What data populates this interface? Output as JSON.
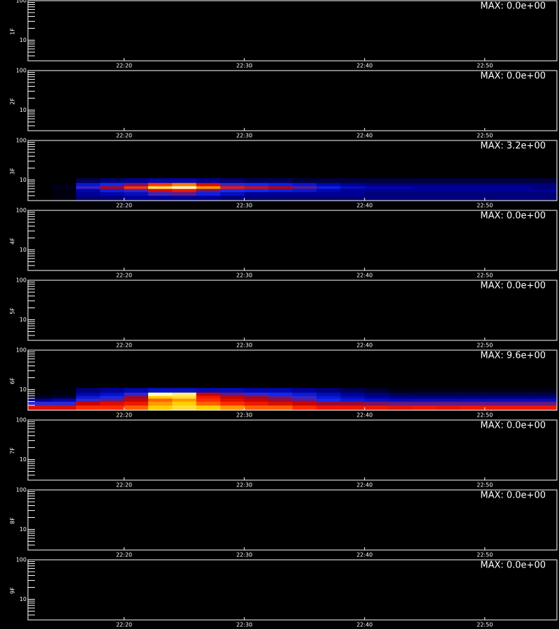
{
  "chart_data": [
    {
      "type": "heatmap",
      "ylabel": "1F",
      "annotation": "MAX: 0.0e+00",
      "xlim": [
        12,
        56
      ],
      "xticks": [
        {
          "value": 20,
          "label": "22:20"
        },
        {
          "value": 30,
          "label": "22:30"
        },
        {
          "value": 40,
          "label": "22:40"
        },
        {
          "value": 50,
          "label": "22:50"
        }
      ],
      "ylim": [
        3,
        100
      ],
      "yticks": [
        10,
        100
      ],
      "yminorticks": [
        4,
        5,
        6,
        7,
        8,
        9,
        20,
        30,
        40,
        50,
        60,
        70,
        80,
        90
      ],
      "log_y": true
    },
    {
      "type": "heatmap",
      "ylabel": "2F",
      "annotation": "MAX: 0.0e+00",
      "xlim": [
        12,
        56
      ],
      "xticks": [
        {
          "value": 20,
          "label": "22:20"
        },
        {
          "value": 30,
          "label": "22:30"
        },
        {
          "value": 40,
          "label": "22:40"
        },
        {
          "value": 50,
          "label": "22:50"
        }
      ],
      "ylim": [
        3,
        100
      ],
      "yticks": [
        10,
        100
      ],
      "yminorticks": [
        4,
        5,
        6,
        7,
        8,
        9,
        20,
        30,
        40,
        50,
        60,
        70,
        80,
        90
      ],
      "log_y": true
    },
    {
      "type": "heatmap",
      "ylabel": "3F",
      "annotation": "MAX: 3.2e+00",
      "xlim": [
        12,
        56
      ],
      "xticks": [
        {
          "value": 20,
          "label": "22:20"
        },
        {
          "value": 30,
          "label": "22:30"
        },
        {
          "value": 40,
          "label": "22:40"
        },
        {
          "value": 50,
          "label": "22:50"
        }
      ],
      "ylim": [
        3,
        100
      ],
      "yticks": [
        10,
        100
      ],
      "yminorticks": [
        4,
        5,
        6,
        7,
        8,
        9,
        20,
        30,
        40,
        50,
        60,
        70,
        80,
        90
      ],
      "log_y": true,
      "colorscale": [
        "#000000",
        "#0000a0",
        "#1030ff",
        "#c00000",
        "#ff2000",
        "#ffd000",
        "#ffffc0"
      ],
      "xbins": [
        12,
        14,
        16,
        18,
        20,
        22,
        24,
        26,
        28,
        30,
        32,
        34,
        36,
        38,
        40,
        42,
        44,
        46,
        48,
        50,
        52,
        54,
        56
      ],
      "ybins": [
        3,
        4,
        5,
        6,
        7,
        8.5,
        11
      ],
      "z": [
        [
          0,
          0.05,
          0.4,
          0.4,
          0.5,
          0.5,
          0.5,
          0.5,
          0.4,
          0.4,
          0.4,
          0.4,
          0.4,
          0.4,
          0.4,
          0.4,
          0.4,
          0.4,
          0.4,
          0.4,
          0.4,
          0.4
        ],
        [
          0,
          0.05,
          0.5,
          0.6,
          0.7,
          1.2,
          1.3,
          0.9,
          0.7,
          0.5,
          0.5,
          0.5,
          0.5,
          0.5,
          0.4,
          0.4,
          0.4,
          0.4,
          0.4,
          0.4,
          0.4,
          0.4
        ],
        [
          0,
          0.05,
          0.6,
          0.9,
          1.2,
          1.8,
          2.0,
          1.4,
          1.1,
          1.0,
          0.9,
          0.8,
          0.6,
          0.5,
          0.5,
          0.5,
          0.5,
          0.5,
          0.5,
          0.5,
          0.5,
          0.5
        ],
        [
          0,
          0.1,
          1.2,
          1.6,
          2.2,
          2.9,
          3.2,
          2.5,
          2.0,
          1.8,
          1.6,
          1.3,
          0.9,
          0.7,
          0.6,
          0.6,
          0.5,
          0.5,
          0.5,
          0.5,
          0.5,
          0.4
        ],
        [
          0,
          0.05,
          0.8,
          1.0,
          1.4,
          2.2,
          2.4,
          1.8,
          1.2,
          1.0,
          0.9,
          0.8,
          0.6,
          0.5,
          0.4,
          0.4,
          0.4,
          0.4,
          0.4,
          0.4,
          0.4,
          0.4
        ],
        [
          0,
          0,
          0.3,
          0.4,
          0.5,
          0.6,
          0.6,
          0.5,
          0.4,
          0.3,
          0.3,
          0.2,
          0.2,
          0.2,
          0.2,
          0.2,
          0.2,
          0.2,
          0.2,
          0.2,
          0.2,
          0.2
        ]
      ]
    },
    {
      "type": "heatmap",
      "ylabel": "4F",
      "annotation": "MAX: 0.0e+00",
      "xlim": [
        12,
        56
      ],
      "xticks": [
        {
          "value": 20,
          "label": "22:20"
        },
        {
          "value": 30,
          "label": "22:30"
        },
        {
          "value": 40,
          "label": "22:40"
        },
        {
          "value": 50,
          "label": "22:50"
        }
      ],
      "ylim": [
        3,
        100
      ],
      "yticks": [
        10,
        100
      ],
      "yminorticks": [
        4,
        5,
        6,
        7,
        8,
        9,
        20,
        30,
        40,
        50,
        60,
        70,
        80,
        90
      ],
      "log_y": true
    },
    {
      "type": "heatmap",
      "ylabel": "5F",
      "annotation": "MAX: 0.0e+00",
      "xlim": [
        12,
        56
      ],
      "xticks": [
        {
          "value": 20,
          "label": "22:20"
        },
        {
          "value": 30,
          "label": "22:30"
        },
        {
          "value": 40,
          "label": "22:40"
        },
        {
          "value": 50,
          "label": "22:50"
        }
      ],
      "ylim": [
        3,
        100
      ],
      "yticks": [
        10,
        100
      ],
      "yminorticks": [
        4,
        5,
        6,
        7,
        8,
        9,
        20,
        30,
        40,
        50,
        60,
        70,
        80,
        90
      ],
      "log_y": true
    },
    {
      "type": "heatmap",
      "ylabel": "6F",
      "annotation": "MAX: 9.6e+00",
      "xlim": [
        12,
        56
      ],
      "xticks": [
        {
          "value": 20,
          "label": "22:20"
        },
        {
          "value": 30,
          "label": "22:30"
        },
        {
          "value": 40,
          "label": "22:40"
        },
        {
          "value": 50,
          "label": "22:50"
        }
      ],
      "ylim": [
        3,
        100
      ],
      "yticks": [
        10,
        100
      ],
      "yminorticks": [
        4,
        5,
        6,
        7,
        8,
        9,
        20,
        30,
        40,
        50,
        60,
        70,
        80,
        90
      ],
      "log_y": true,
      "colorscale": [
        "#000000",
        "#0000a0",
        "#1030ff",
        "#c00000",
        "#ff2000",
        "#ffd000",
        "#ffffc0"
      ],
      "xbins": [
        12,
        14,
        16,
        18,
        20,
        22,
        24,
        26,
        28,
        30,
        32,
        34,
        36,
        38,
        40,
        42,
        44,
        46,
        48,
        50,
        52,
        54,
        56
      ],
      "ybins": [
        3,
        4,
        5,
        6,
        7,
        8.5,
        11
      ],
      "z": [
        [
          5.5,
          5.5,
          6.5,
          6.5,
          7,
          8,
          8.5,
          8,
          7.5,
          7,
          7,
          6.5,
          6,
          6,
          6,
          5.8,
          6,
          5.8,
          6,
          6,
          6,
          6
        ],
        [
          3.5,
          3.5,
          5,
          5.5,
          6,
          7.5,
          8,
          7,
          6.5,
          6,
          5.5,
          5,
          4.5,
          4.5,
          4.2,
          4,
          4,
          4,
          4,
          4,
          4,
          4
        ],
        [
          1.5,
          1.8,
          3.5,
          4,
          5,
          7,
          7.5,
          6.5,
          5.5,
          5,
          4.5,
          4,
          3,
          2.5,
          2.2,
          2,
          2,
          2,
          2,
          2,
          2,
          2
        ],
        [
          0.3,
          0.5,
          2.5,
          3,
          4.5,
          8,
          8.5,
          6,
          5,
          4.5,
          4,
          3.5,
          2.5,
          2,
          1.6,
          1.4,
          1.2,
          1.2,
          1.2,
          1.2,
          1.2,
          1.2
        ],
        [
          0.1,
          0.2,
          1.8,
          2.2,
          3.5,
          9.6,
          9,
          5,
          4,
          3.5,
          3,
          2.5,
          2,
          1.6,
          1.2,
          0.8,
          0.8,
          0.8,
          0.8,
          0.8,
          0.8,
          0.8
        ],
        [
          0,
          0.1,
          1.2,
          1.5,
          1.8,
          2.2,
          2.2,
          2,
          2,
          1.8,
          1.8,
          1.5,
          1.2,
          0.8,
          0.5,
          0.2,
          0.2,
          0.2,
          0.2,
          0.2,
          0.2,
          0.2
        ]
      ]
    },
    {
      "type": "heatmap",
      "ylabel": "7F",
      "annotation": "MAX: 0.0e+00",
      "xlim": [
        12,
        56
      ],
      "xticks": [
        {
          "value": 20,
          "label": "22:20"
        },
        {
          "value": 30,
          "label": "22:30"
        },
        {
          "value": 40,
          "label": "22:40"
        },
        {
          "value": 50,
          "label": "22:50"
        }
      ],
      "ylim": [
        3,
        100
      ],
      "yticks": [
        10,
        100
      ],
      "yminorticks": [
        4,
        5,
        6,
        7,
        8,
        9,
        20,
        30,
        40,
        50,
        60,
        70,
        80,
        90
      ],
      "log_y": true
    },
    {
      "type": "heatmap",
      "ylabel": "8F",
      "annotation": "MAX: 0.0e+00",
      "xlim": [
        12,
        56
      ],
      "xticks": [
        {
          "value": 20,
          "label": "22:20"
        },
        {
          "value": 30,
          "label": "22:30"
        },
        {
          "value": 40,
          "label": "22:40"
        },
        {
          "value": 50,
          "label": "22:50"
        }
      ],
      "ylim": [
        3,
        100
      ],
      "yticks": [
        10,
        100
      ],
      "yminorticks": [
        4,
        5,
        6,
        7,
        8,
        9,
        20,
        30,
        40,
        50,
        60,
        70,
        80,
        90
      ],
      "log_y": true
    },
    {
      "type": "heatmap",
      "ylabel": "9F",
      "annotation": "MAX: 0.0e+00",
      "xlim": [
        12,
        56
      ],
      "xticks": [
        {
          "value": 20,
          "label": "22:20"
        },
        {
          "value": 30,
          "label": "22:30"
        },
        {
          "value": 40,
          "label": "22:40"
        },
        {
          "value": 50,
          "label": "22:50"
        }
      ],
      "ylim": [
        3,
        100
      ],
      "yticks": [
        10,
        100
      ],
      "yminorticks": [
        4,
        5,
        6,
        7,
        8,
        9,
        20,
        30,
        40,
        50,
        60,
        70,
        80,
        90
      ],
      "log_y": true
    }
  ]
}
